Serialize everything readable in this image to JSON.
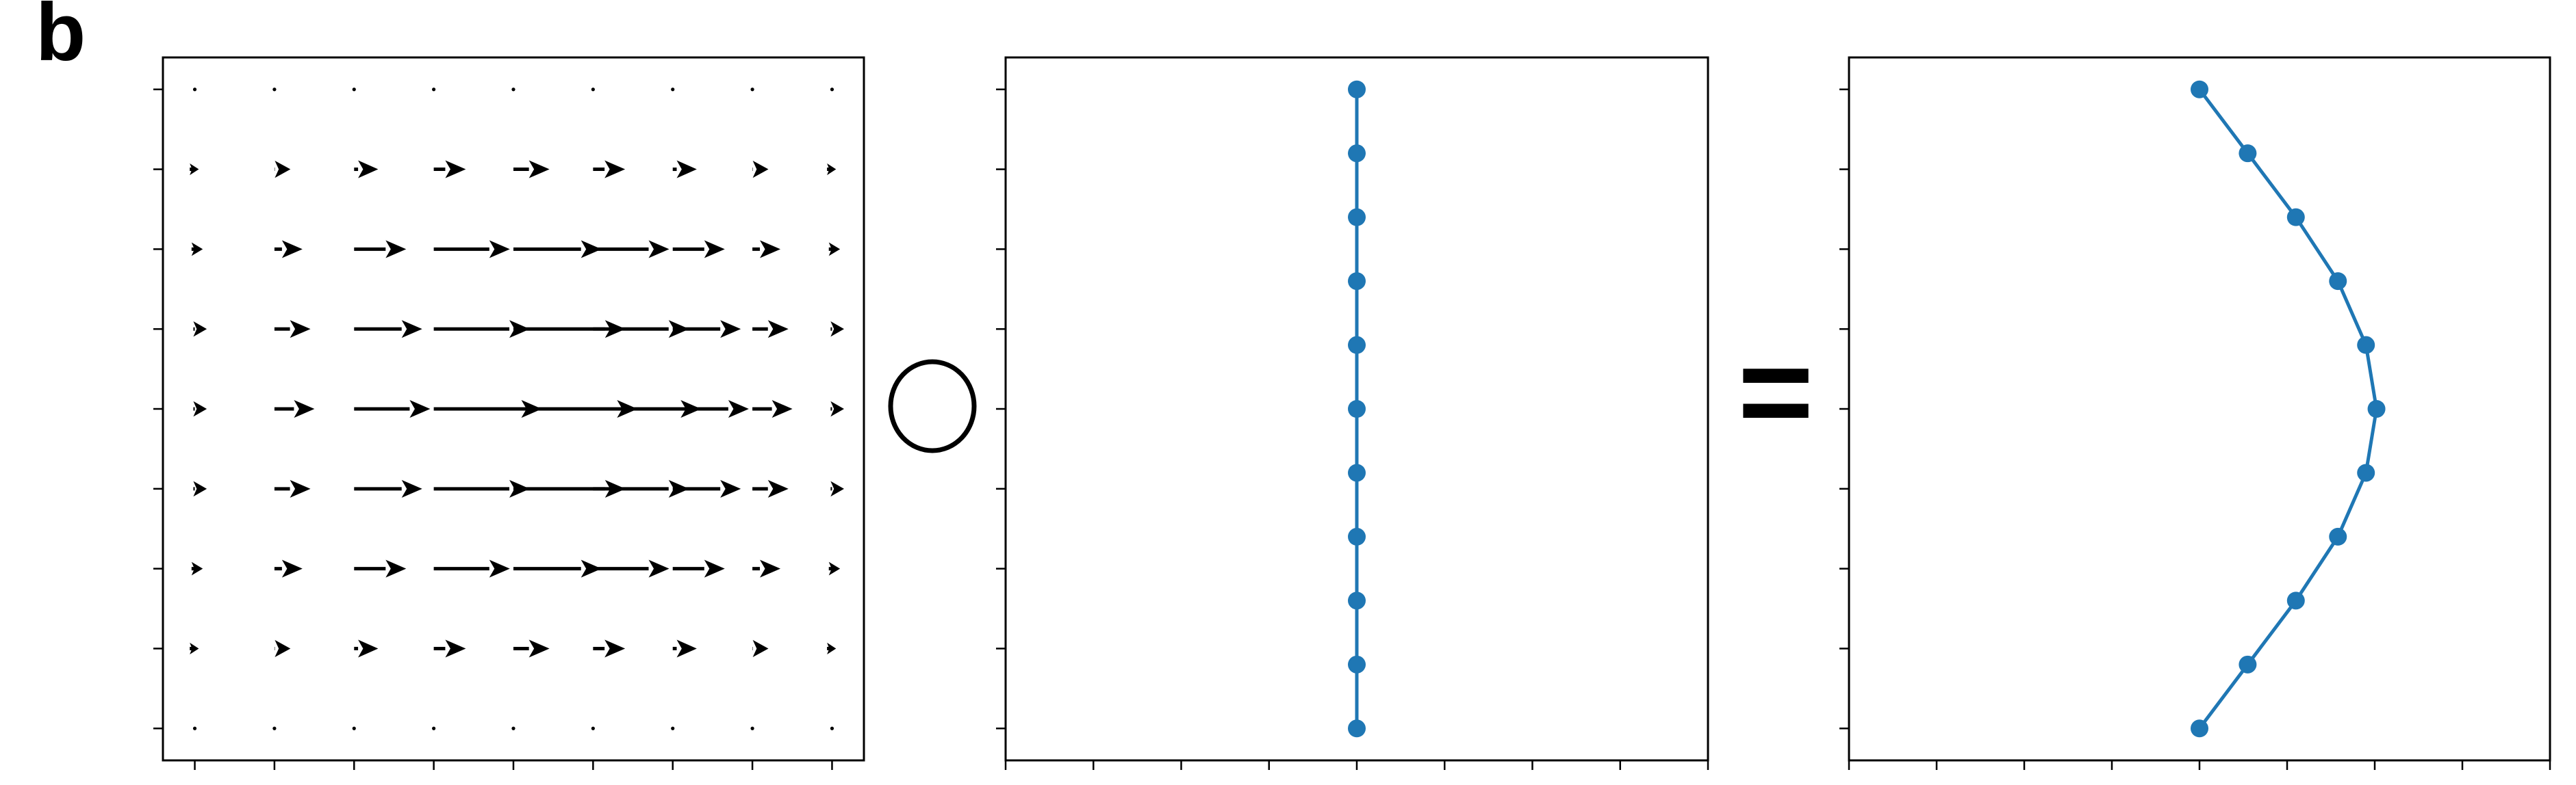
{
  "panel_label": "b",
  "operators": {
    "compose": "circle",
    "equals": "="
  },
  "colors": {
    "series": "#1f77b4",
    "quiver": "#000000",
    "axes": "#000000"
  },
  "chart_data": [
    {
      "type": "quiver",
      "title": "",
      "xlabel": "",
      "ylabel": "",
      "x_ticks": [
        0,
        1,
        2,
        3,
        4,
        5,
        6,
        7,
        8
      ],
      "y_ticks": [
        0,
        1,
        2,
        3,
        4,
        5,
        6,
        7,
        8
      ],
      "xlim": [
        -0.4,
        8.4
      ],
      "ylim": [
        -0.4,
        8.4
      ],
      "tick_labels_shown": false,
      "grid": false,
      "field": {
        "nx": 9,
        "ny": 9,
        "u": [
          [
            0,
            0,
            0,
            0,
            0,
            0,
            0,
            0,
            0
          ],
          [
            0.05,
            0.2,
            0.3,
            0.4,
            0.45,
            0.4,
            0.3,
            0.2,
            0.05
          ],
          [
            0.1,
            0.35,
            0.65,
            0.95,
            1.1,
            0.95,
            0.65,
            0.35,
            0.1
          ],
          [
            0.15,
            0.45,
            0.85,
            1.2,
            1.4,
            1.2,
            0.85,
            0.45,
            0.15
          ],
          [
            0.15,
            0.5,
            0.95,
            1.35,
            1.55,
            1.35,
            0.95,
            0.5,
            0.15
          ],
          [
            0.15,
            0.45,
            0.85,
            1.2,
            1.4,
            1.2,
            0.85,
            0.45,
            0.15
          ],
          [
            0.1,
            0.35,
            0.65,
            0.95,
            1.1,
            0.95,
            0.65,
            0.35,
            0.1
          ],
          [
            0.05,
            0.2,
            0.3,
            0.4,
            0.45,
            0.4,
            0.3,
            0.2,
            0.05
          ],
          [
            0,
            0,
            0,
            0,
            0,
            0,
            0,
            0,
            0
          ]
        ],
        "v": [
          [
            0,
            0,
            0,
            0,
            0,
            0,
            0,
            0,
            0
          ],
          [
            0,
            0,
            0,
            0,
            0,
            0,
            0,
            0,
            0
          ],
          [
            0,
            0,
            0,
            0,
            0,
            0,
            0,
            0,
            0
          ],
          [
            0,
            0,
            0,
            0,
            0,
            0,
            0,
            0,
            0
          ],
          [
            0,
            0,
            0,
            0,
            0,
            0,
            0,
            0,
            0
          ],
          [
            0,
            0,
            0,
            0,
            0,
            0,
            0,
            0,
            0
          ],
          [
            0,
            0,
            0,
            0,
            0,
            0,
            0,
            0,
            0
          ],
          [
            0,
            0,
            0,
            0,
            0,
            0,
            0,
            0,
            0
          ],
          [
            0,
            0,
            0,
            0,
            0,
            0,
            0,
            0,
            0
          ]
        ]
      }
    },
    {
      "type": "line",
      "title": "",
      "xlabel": "",
      "ylabel": "",
      "markers": true,
      "x_ticks": [
        -4,
        -3,
        -2,
        -1,
        0,
        1,
        2,
        3,
        4
      ],
      "y_ticks": [
        0,
        1,
        2,
        3,
        4,
        5,
        6,
        7,
        8
      ],
      "xlim": [
        -4,
        4
      ],
      "ylim": [
        -0.4,
        8.4
      ],
      "tick_labels_shown": false,
      "grid": false,
      "series": [
        {
          "x": [
            0,
            0,
            0,
            0,
            0,
            0,
            0,
            0,
            0,
            0,
            0
          ],
          "y": [
            0,
            0.8,
            1.6,
            2.4,
            3.2,
            4,
            4.8,
            5.6,
            6.4,
            7.2,
            8
          ]
        }
      ]
    },
    {
      "type": "line",
      "title": "",
      "xlabel": "",
      "ylabel": "",
      "markers": true,
      "x_ticks": [
        -4,
        -3,
        -2,
        -1,
        0,
        1,
        2,
        3,
        4
      ],
      "y_ticks": [
        0,
        1,
        2,
        3,
        4,
        5,
        6,
        7,
        8
      ],
      "xlim": [
        -4,
        4
      ],
      "ylim": [
        -0.4,
        8.4
      ],
      "tick_labels_shown": false,
      "grid": false,
      "series": [
        {
          "x": [
            0,
            0.55,
            1.1,
            1.58,
            1.9,
            2.02,
            1.9,
            1.58,
            1.1,
            0.55,
            0
          ],
          "y": [
            0,
            0.8,
            1.6,
            2.4,
            3.2,
            4,
            4.8,
            5.6,
            6.4,
            7.2,
            8
          ]
        }
      ]
    }
  ]
}
